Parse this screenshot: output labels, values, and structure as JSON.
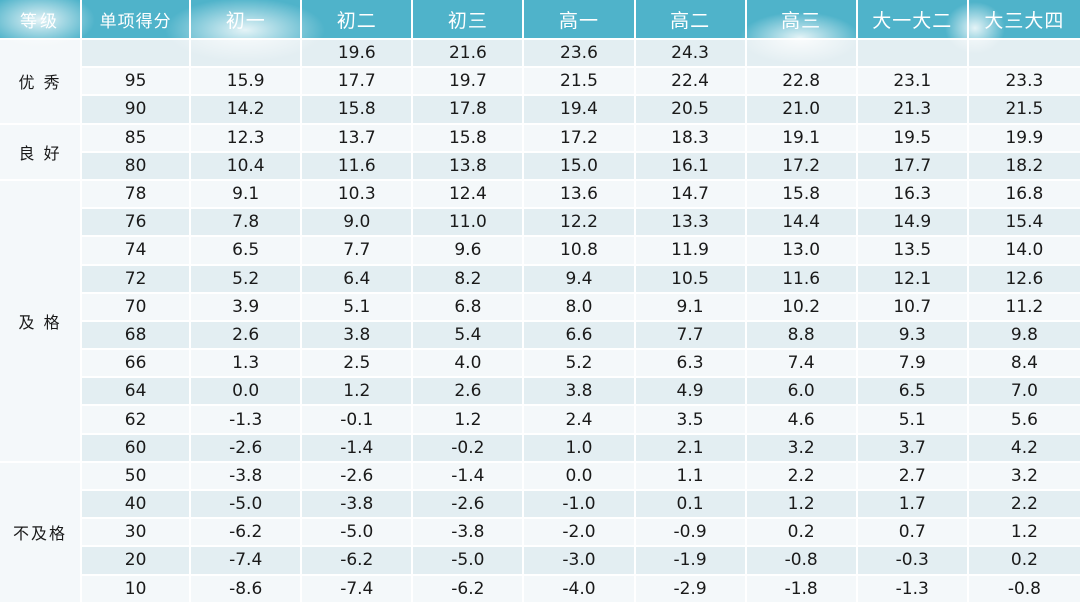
{
  "header": {
    "grade": "等级",
    "score": "单项得分",
    "cols": [
      "初一",
      "初二",
      "初三",
      "高一",
      "高二",
      "高三",
      "大一大二",
      "大三大四"
    ]
  },
  "groups": [
    {
      "label": "优 秀",
      "rows": [
        {
          "score": "",
          "values": [
            "",
            "19.6",
            "21.6",
            "23.6",
            "24.3",
            "",
            "",
            ""
          ]
        },
        {
          "score": "95",
          "values": [
            "15.9",
            "17.7",
            "19.7",
            "21.5",
            "22.4",
            "22.8",
            "23.1",
            "23.3"
          ]
        },
        {
          "score": "90",
          "values": [
            "14.2",
            "15.8",
            "17.8",
            "19.4",
            "20.5",
            "21.0",
            "21.3",
            "21.5"
          ]
        }
      ]
    },
    {
      "label": "良 好",
      "rows": [
        {
          "score": "85",
          "values": [
            "12.3",
            "13.7",
            "15.8",
            "17.2",
            "18.3",
            "19.1",
            "19.5",
            "19.9"
          ]
        },
        {
          "score": "80",
          "values": [
            "10.4",
            "11.6",
            "13.8",
            "15.0",
            "16.1",
            "17.2",
            "17.7",
            "18.2"
          ]
        }
      ]
    },
    {
      "label": "及 格",
      "rows": [
        {
          "score": "78",
          "values": [
            "9.1",
            "10.3",
            "12.4",
            "13.6",
            "14.7",
            "15.8",
            "16.3",
            "16.8"
          ]
        },
        {
          "score": "76",
          "values": [
            "7.8",
            "9.0",
            "11.0",
            "12.2",
            "13.3",
            "14.4",
            "14.9",
            "15.4"
          ]
        },
        {
          "score": "74",
          "values": [
            "6.5",
            "7.7",
            "9.6",
            "10.8",
            "11.9",
            "13.0",
            "13.5",
            "14.0"
          ]
        },
        {
          "score": "72",
          "values": [
            "5.2",
            "6.4",
            "8.2",
            "9.4",
            "10.5",
            "11.6",
            "12.1",
            "12.6"
          ]
        },
        {
          "score": "70",
          "values": [
            "3.9",
            "5.1",
            "6.8",
            "8.0",
            "9.1",
            "10.2",
            "10.7",
            "11.2"
          ]
        },
        {
          "score": "68",
          "values": [
            "2.6",
            "3.8",
            "5.4",
            "6.6",
            "7.7",
            "8.8",
            "9.3",
            "9.8"
          ]
        },
        {
          "score": "66",
          "values": [
            "1.3",
            "2.5",
            "4.0",
            "5.2",
            "6.3",
            "7.4",
            "7.9",
            "8.4"
          ]
        },
        {
          "score": "64",
          "values": [
            "0.0",
            "1.2",
            "2.6",
            "3.8",
            "4.9",
            "6.0",
            "6.5",
            "7.0"
          ]
        },
        {
          "score": "62",
          "values": [
            "-1.3",
            "-0.1",
            "1.2",
            "2.4",
            "3.5",
            "4.6",
            "5.1",
            "5.6"
          ]
        },
        {
          "score": "60",
          "values": [
            "-2.6",
            "-1.4",
            "-0.2",
            "1.0",
            "2.1",
            "3.2",
            "3.7",
            "4.2"
          ]
        }
      ]
    },
    {
      "label": "不及格",
      "rows": [
        {
          "score": "50",
          "values": [
            "-3.8",
            "-2.6",
            "-1.4",
            "0.0",
            "1.1",
            "2.2",
            "2.7",
            "3.2"
          ]
        },
        {
          "score": "40",
          "values": [
            "-5.0",
            "-3.8",
            "-2.6",
            "-1.0",
            "0.1",
            "1.2",
            "1.7",
            "2.2"
          ]
        },
        {
          "score": "30",
          "values": [
            "-6.2",
            "-5.0",
            "-3.8",
            "-2.0",
            "-0.9",
            "0.2",
            "0.7",
            "1.2"
          ]
        },
        {
          "score": "20",
          "values": [
            "-7.4",
            "-6.2",
            "-5.0",
            "-3.0",
            "-1.9",
            "-0.8",
            "-0.3",
            "0.2"
          ]
        },
        {
          "score": "10",
          "values": [
            "-8.6",
            "-7.4",
            "-6.2",
            "-4.0",
            "-2.9",
            "-1.8",
            "-1.3",
            "-0.8"
          ]
        }
      ]
    }
  ],
  "colors": {
    "header_bg": "#4fb3ca",
    "row_dark": "#e3eef2",
    "row_light": "#f4f8fa"
  }
}
